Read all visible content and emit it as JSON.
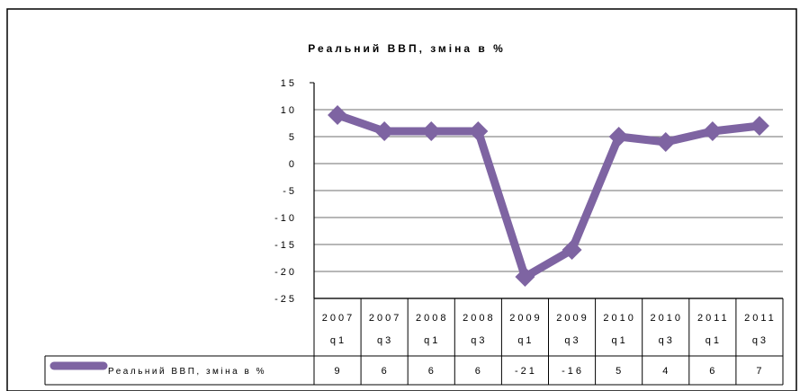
{
  "chart_data": {
    "type": "line",
    "title": "Реальний ВВП, зміна в %",
    "categories": [
      {
        "year": "2007",
        "quarter": "q1"
      },
      {
        "year": "2007",
        "quarter": "q3"
      },
      {
        "year": "2008",
        "quarter": "q1"
      },
      {
        "year": "2008",
        "quarter": "q3"
      },
      {
        "year": "2009",
        "quarter": "q1"
      },
      {
        "year": "2009",
        "quarter": "q3"
      },
      {
        "year": "2010",
        "quarter": "q1"
      },
      {
        "year": "2010",
        "quarter": "q3"
      },
      {
        "year": "2011",
        "quarter": "q1"
      },
      {
        "year": "2011",
        "quarter": "q3"
      }
    ],
    "series": [
      {
        "name": "Реальний ВВП, зміна в %",
        "values": [
          9,
          6,
          6,
          6,
          -21,
          -16,
          5,
          4,
          6,
          7
        ],
        "color": "#7e64a2"
      }
    ],
    "ylim": [
      -25,
      15
    ],
    "yticks": [
      "15",
      "10",
      "5",
      "0",
      "-5",
      "-10",
      "-15",
      "-20",
      "-25"
    ],
    "ytick_values": [
      15,
      10,
      5,
      0,
      -5,
      -10,
      -15,
      -20,
      -25
    ],
    "grid": true,
    "legend": "data-table-left",
    "data_table": true
  }
}
